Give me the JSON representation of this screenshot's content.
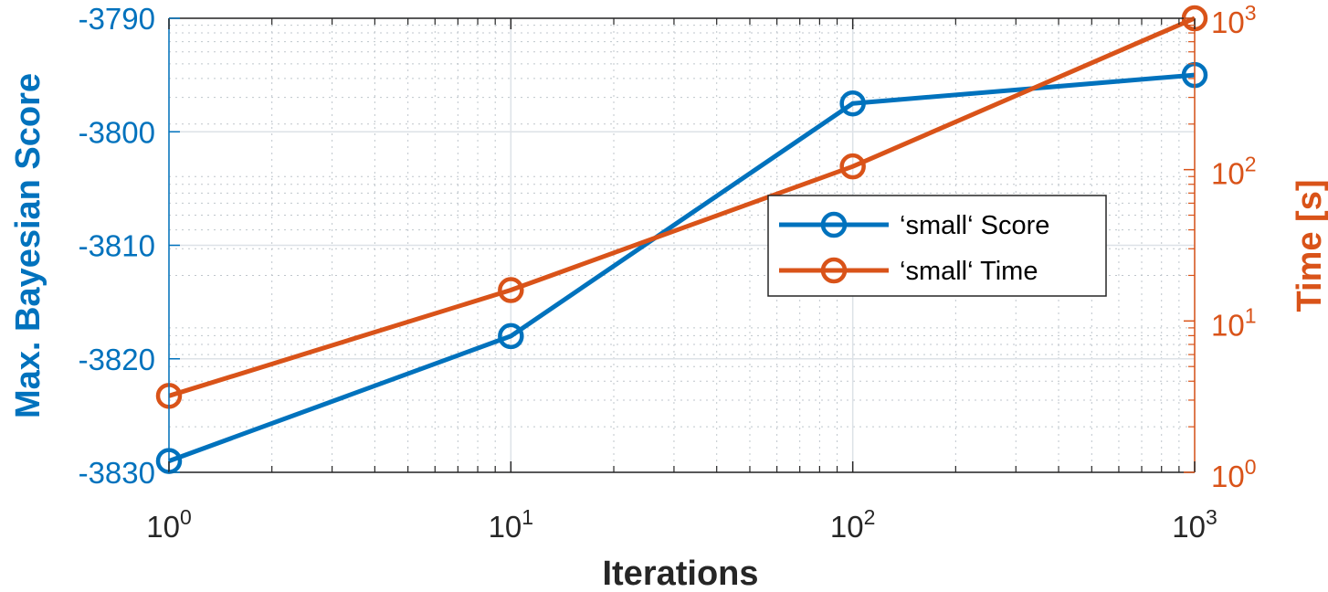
{
  "chart_data": {
    "type": "line",
    "xlabel": "Iterations",
    "ylabel_left": "Max. Bayesian Score",
    "ylabel_right": "Time [s]",
    "x_scale": "log",
    "xlim": [
      1,
      1000
    ],
    "xtick_labels": [
      {
        "base": "10",
        "exp": "0"
      },
      {
        "base": "10",
        "exp": "1"
      },
      {
        "base": "10",
        "exp": "2"
      },
      {
        "base": "10",
        "exp": "3"
      }
    ],
    "y_left": {
      "scale": "linear",
      "lim": [
        -3830,
        -3790
      ],
      "ticks": [
        -3790,
        -3800,
        -3810,
        -3820,
        -3830
      ],
      "tick_labels": [
        "-3790",
        "-3800",
        "-3810",
        "-3820",
        "-3830"
      ]
    },
    "y_right": {
      "scale": "log",
      "lim": [
        1,
        1000
      ],
      "tick_labels": [
        {
          "base": "10",
          "exp": "3"
        },
        {
          "base": "10",
          "exp": "2"
        },
        {
          "base": "10",
          "exp": "1"
        },
        {
          "base": "10",
          "exp": "0"
        }
      ]
    },
    "grid": true,
    "legend_position": "center-right",
    "series": [
      {
        "name": "‘small‘ Score",
        "axis": "left",
        "color": "#0072BD",
        "x": [
          1,
          10,
          100,
          1000
        ],
        "y": [
          -3829,
          -3818,
          -3797.5,
          -3795
        ]
      },
      {
        "name": "‘small‘ Time",
        "axis": "right",
        "color": "#D95319",
        "x": [
          1,
          10,
          100,
          1000
        ],
        "y": [
          3.2,
          16,
          105,
          1000
        ]
      }
    ]
  }
}
